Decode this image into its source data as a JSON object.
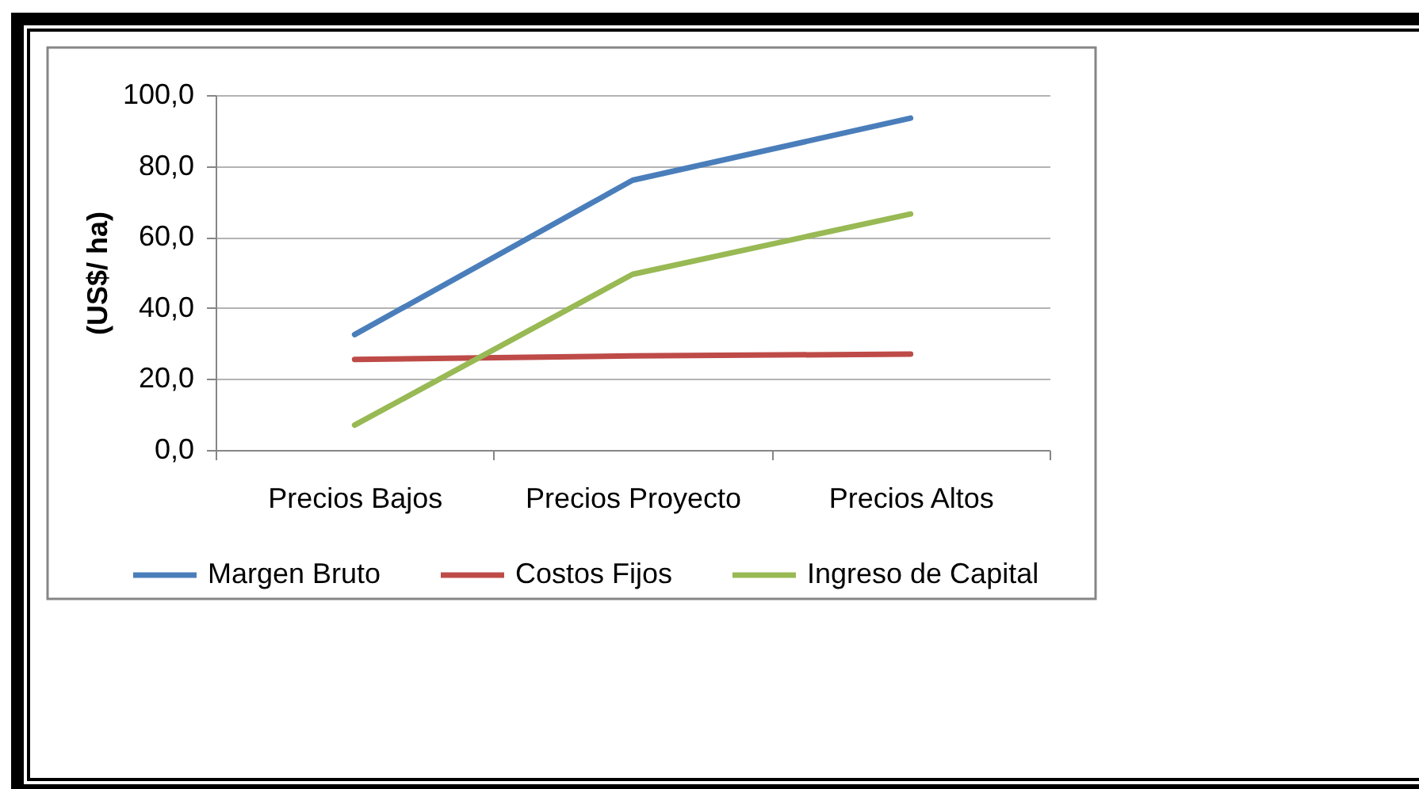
{
  "chart_data": {
    "type": "line",
    "ylabel": "(US$/ ha)",
    "categories": [
      "Precios Bajos",
      "Precios Proyecto",
      "Precios Altos"
    ],
    "series": [
      {
        "name": "Margen Bruto",
        "color": "#4a7ebb",
        "values": [
          32.5,
          76,
          93.5
        ]
      },
      {
        "name": "Costos Fijos",
        "color": "#be4b48",
        "values": [
          25.5,
          26.5,
          27
        ]
      },
      {
        "name": "Ingreso de Capital",
        "color": "#98b954",
        "values": [
          7,
          49.5,
          66.5
        ]
      }
    ],
    "ylim": [
      0,
      100
    ],
    "yticks": [
      {
        "value": 0,
        "label": "0,0"
      },
      {
        "value": 20,
        "label": "20,0"
      },
      {
        "value": 40,
        "label": "40,0"
      },
      {
        "value": 60,
        "label": "60,0"
      },
      {
        "value": 80,
        "label": "80,0"
      },
      {
        "value": 100,
        "label": "100,0"
      }
    ],
    "grid": "y",
    "legend": "bottom"
  }
}
